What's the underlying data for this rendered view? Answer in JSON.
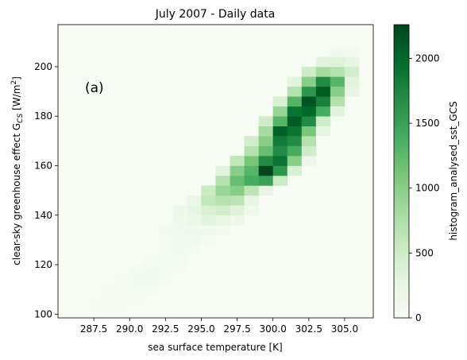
{
  "chart_data": {
    "type": "heatmap",
    "title": "July 2007 - Daily data",
    "xlabel": "sea surface temperature [K]",
    "ylabel_main": "clear-sky greenhouse effect G",
    "ylabel_sub": "CS",
    "ylabel_units_open": " [W/m",
    "ylabel_units_exp": "2",
    "ylabel_units_close": "]",
    "annotation": "(a)",
    "colorbar_label": "histogram_analysed_sst_GCS",
    "colormap": [
      "#f7fcf5",
      "#e5f5e0",
      "#c7e9c0",
      "#a1d99b",
      "#74c476",
      "#41ab5d",
      "#238b45",
      "#006d2c",
      "#00441b"
    ],
    "xlim": [
      285.0,
      307.0
    ],
    "ylim": [
      98.5,
      217.0
    ],
    "vmax": 2260,
    "bin_width_x": 1.0,
    "bin_height_y": 4.0,
    "x_ticks": [
      287.5,
      290.0,
      292.5,
      295.0,
      297.5,
      300.0,
      302.5,
      305.0
    ],
    "x_tick_labels": [
      "287.5",
      "290.0",
      "292.5",
      "295.0",
      "297.5",
      "300.0",
      "302.5",
      "305.0"
    ],
    "y_ticks": [
      100,
      120,
      140,
      160,
      180,
      200
    ],
    "y_tick_labels": [
      "100",
      "120",
      "140",
      "160",
      "180",
      "200"
    ],
    "colorbar_ticks": [
      0,
      500,
      1000,
      1500,
      2000
    ],
    "colorbar_tick_labels": [
      "0",
      "500",
      "1000",
      "1500",
      "2000"
    ],
    "bins": [
      {
        "x": 287,
        "y": 100,
        "value": 15
      },
      {
        "x": 288,
        "y": 100,
        "value": 25
      },
      {
        "x": 289,
        "y": 100,
        "value": 20
      },
      {
        "x": 287,
        "y": 104,
        "value": 20
      },
      {
        "x": 288,
        "y": 104,
        "value": 30
      },
      {
        "x": 289,
        "y": 104,
        "value": 35
      },
      {
        "x": 290,
        "y": 104,
        "value": 25
      },
      {
        "x": 288,
        "y": 108,
        "value": 30
      },
      {
        "x": 289,
        "y": 108,
        "value": 40
      },
      {
        "x": 290,
        "y": 108,
        "value": 45
      },
      {
        "x": 291,
        "y": 108,
        "value": 40
      },
      {
        "x": 289,
        "y": 112,
        "value": 35
      },
      {
        "x": 290,
        "y": 112,
        "value": 60
      },
      {
        "x": 291,
        "y": 112,
        "value": 70
      },
      {
        "x": 292,
        "y": 112,
        "value": 40
      },
      {
        "x": 290,
        "y": 116,
        "value": 50
      },
      {
        "x": 291,
        "y": 116,
        "value": 60
      },
      {
        "x": 292,
        "y": 116,
        "value": 50
      },
      {
        "x": 293,
        "y": 116,
        "value": 30
      },
      {
        "x": 291,
        "y": 120,
        "value": 40
      },
      {
        "x": 292,
        "y": 120,
        "value": 50
      },
      {
        "x": 293,
        "y": 120,
        "value": 45
      },
      {
        "x": 292,
        "y": 124,
        "value": 40
      },
      {
        "x": 293,
        "y": 124,
        "value": 55
      },
      {
        "x": 294,
        "y": 124,
        "value": 45
      },
      {
        "x": 292,
        "y": 128,
        "value": 45
      },
      {
        "x": 293,
        "y": 128,
        "value": 70
      },
      {
        "x": 294,
        "y": 128,
        "value": 80
      },
      {
        "x": 295,
        "y": 128,
        "value": 50
      },
      {
        "x": 292,
        "y": 132,
        "value": 60
      },
      {
        "x": 293,
        "y": 132,
        "value": 90
      },
      {
        "x": 294,
        "y": 132,
        "value": 120
      },
      {
        "x": 295,
        "y": 132,
        "value": 110
      },
      {
        "x": 296,
        "y": 132,
        "value": 60
      },
      {
        "x": 293,
        "y": 136,
        "value": 110
      },
      {
        "x": 294,
        "y": 136,
        "value": 180
      },
      {
        "x": 295,
        "y": 136,
        "value": 300
      },
      {
        "x": 296,
        "y": 136,
        "value": 240
      },
      {
        "x": 297,
        "y": 136,
        "value": 130
      },
      {
        "x": 293,
        "y": 140,
        "value": 140
      },
      {
        "x": 294,
        "y": 140,
        "value": 260
      },
      {
        "x": 295,
        "y": 140,
        "value": 400
      },
      {
        "x": 296,
        "y": 140,
        "value": 450
      },
      {
        "x": 297,
        "y": 140,
        "value": 320
      },
      {
        "x": 298,
        "y": 140,
        "value": 120
      },
      {
        "x": 294,
        "y": 144,
        "value": 200
      },
      {
        "x": 295,
        "y": 144,
        "value": 600
      },
      {
        "x": 296,
        "y": 144,
        "value": 700
      },
      {
        "x": 297,
        "y": 144,
        "value": 650
      },
      {
        "x": 298,
        "y": 144,
        "value": 250
      },
      {
        "x": 295,
        "y": 148,
        "value": 550
      },
      {
        "x": 296,
        "y": 148,
        "value": 900
      },
      {
        "x": 297,
        "y": 148,
        "value": 1000
      },
      {
        "x": 298,
        "y": 148,
        "value": 650
      },
      {
        "x": 299,
        "y": 148,
        "value": 250
      },
      {
        "x": 296,
        "y": 152,
        "value": 700
      },
      {
        "x": 297,
        "y": 152,
        "value": 1200
      },
      {
        "x": 298,
        "y": 152,
        "value": 1400
      },
      {
        "x": 299,
        "y": 152,
        "value": 1500
      },
      {
        "x": 300,
        "y": 152,
        "value": 550
      },
      {
        "x": 296,
        "y": 156,
        "value": 300
      },
      {
        "x": 297,
        "y": 156,
        "value": 1000
      },
      {
        "x": 298,
        "y": 156,
        "value": 1300
      },
      {
        "x": 299,
        "y": 156,
        "value": 2250
      },
      {
        "x": 300,
        "y": 156,
        "value": 1600
      },
      {
        "x": 301,
        "y": 156,
        "value": 400
      },
      {
        "x": 297,
        "y": 160,
        "value": 600
      },
      {
        "x": 298,
        "y": 160,
        "value": 1100
      },
      {
        "x": 299,
        "y": 160,
        "value": 1700
      },
      {
        "x": 300,
        "y": 160,
        "value": 1900
      },
      {
        "x": 301,
        "y": 160,
        "value": 1000
      },
      {
        "x": 302,
        "y": 160,
        "value": 150
      },
      {
        "x": 298,
        "y": 164,
        "value": 700
      },
      {
        "x": 299,
        "y": 164,
        "value": 1200
      },
      {
        "x": 300,
        "y": 164,
        "value": 1700
      },
      {
        "x": 301,
        "y": 164,
        "value": 1400
      },
      {
        "x": 302,
        "y": 164,
        "value": 500
      },
      {
        "x": 298,
        "y": 168,
        "value": 450
      },
      {
        "x": 299,
        "y": 168,
        "value": 1000
      },
      {
        "x": 300,
        "y": 168,
        "value": 1850
      },
      {
        "x": 301,
        "y": 168,
        "value": 1700
      },
      {
        "x": 302,
        "y": 168,
        "value": 700
      },
      {
        "x": 299,
        "y": 172,
        "value": 800
      },
      {
        "x": 300,
        "y": 172,
        "value": 2050
      },
      {
        "x": 301,
        "y": 172,
        "value": 1900
      },
      {
        "x": 302,
        "y": 172,
        "value": 1100
      },
      {
        "x": 303,
        "y": 172,
        "value": 250
      },
      {
        "x": 299,
        "y": 176,
        "value": 500
      },
      {
        "x": 300,
        "y": 176,
        "value": 1300
      },
      {
        "x": 301,
        "y": 176,
        "value": 2100
      },
      {
        "x": 302,
        "y": 176,
        "value": 1700
      },
      {
        "x": 303,
        "y": 176,
        "value": 500
      },
      {
        "x": 300,
        "y": 180,
        "value": 900
      },
      {
        "x": 301,
        "y": 180,
        "value": 1900
      },
      {
        "x": 302,
        "y": 180,
        "value": 2000
      },
      {
        "x": 303,
        "y": 180,
        "value": 1400
      },
      {
        "x": 304,
        "y": 180,
        "value": 300
      },
      {
        "x": 300,
        "y": 184,
        "value": 400
      },
      {
        "x": 301,
        "y": 184,
        "value": 1300
      },
      {
        "x": 302,
        "y": 184,
        "value": 2150
      },
      {
        "x": 303,
        "y": 184,
        "value": 1800
      },
      {
        "x": 304,
        "y": 184,
        "value": 700
      },
      {
        "x": 301,
        "y": 188,
        "value": 700
      },
      {
        "x": 302,
        "y": 188,
        "value": 1600
      },
      {
        "x": 303,
        "y": 188,
        "value": 2100
      },
      {
        "x": 304,
        "y": 188,
        "value": 1000
      },
      {
        "x": 305,
        "y": 188,
        "value": 250
      },
      {
        "x": 301,
        "y": 192,
        "value": 300
      },
      {
        "x": 302,
        "y": 192,
        "value": 1000
      },
      {
        "x": 303,
        "y": 192,
        "value": 1700
      },
      {
        "x": 304,
        "y": 192,
        "value": 1300
      },
      {
        "x": 305,
        "y": 192,
        "value": 300
      },
      {
        "x": 302,
        "y": 196,
        "value": 500
      },
      {
        "x": 303,
        "y": 196,
        "value": 800
      },
      {
        "x": 304,
        "y": 196,
        "value": 700
      },
      {
        "x": 305,
        "y": 196,
        "value": 450
      },
      {
        "x": 303,
        "y": 200,
        "value": 300
      },
      {
        "x": 304,
        "y": 200,
        "value": 350
      },
      {
        "x": 305,
        "y": 200,
        "value": 250
      },
      {
        "x": 304,
        "y": 204,
        "value": 80
      },
      {
        "x": 305,
        "y": 204,
        "value": 60
      }
    ]
  }
}
